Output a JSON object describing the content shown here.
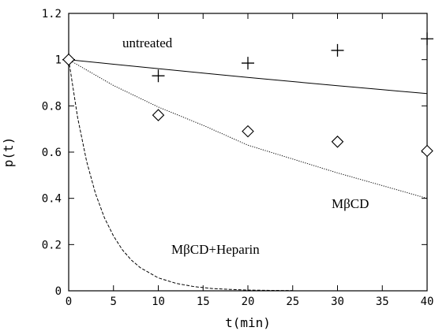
{
  "chart_data": {
    "type": "scatter",
    "xlabel": "t(min)",
    "ylabel": "p(t)",
    "xlim": [
      0,
      40
    ],
    "ylim": [
      0,
      1.2
    ],
    "x_ticks": [
      "0",
      "5",
      "10",
      "15",
      "20",
      "25",
      "30",
      "35",
      "40"
    ],
    "y_ticks": [
      "0",
      "0.2",
      "0.4",
      "0.6",
      "0.8",
      "1",
      "1.2"
    ],
    "grid": false,
    "annotations": [
      "untreated",
      "MβCD",
      "MβCD+Heparin"
    ],
    "series": [
      {
        "name": "untreated",
        "marker": "plus",
        "x": [
          0,
          10,
          20,
          30,
          40
        ],
        "y": [
          1.0,
          0.93,
          0.985,
          1.04,
          1.09
        ]
      },
      {
        "name": "MβCD",
        "marker": "diamond",
        "x": [
          0,
          10,
          20,
          30,
          40
        ],
        "y": [
          1.0,
          0.76,
          0.69,
          0.645,
          0.605
        ]
      }
    ],
    "fits": [
      {
        "name": "untreated",
        "style": "solid",
        "x": [
          0,
          5,
          10,
          15,
          20,
          25,
          30,
          35,
          40
        ],
        "y": [
          1.0,
          0.98,
          0.961,
          0.942,
          0.923,
          0.905,
          0.887,
          0.87,
          0.853
        ]
      },
      {
        "name": "MβCD",
        "style": "dotted",
        "x": [
          0,
          5,
          10,
          15,
          20,
          25,
          30,
          35,
          40
        ],
        "y": [
          1.0,
          0.888,
          0.795,
          0.716,
          0.63,
          0.57,
          0.51,
          0.455,
          0.4
        ]
      },
      {
        "name": "MβCD+Heparin",
        "style": "dashed",
        "x": [
          0,
          1,
          2,
          3,
          4,
          5,
          6,
          7,
          8,
          10,
          12,
          14,
          16,
          18,
          20,
          22,
          25
        ],
        "y": [
          1.0,
          0.75,
          0.56,
          0.42,
          0.315,
          0.237,
          0.177,
          0.133,
          0.1,
          0.056,
          0.032,
          0.018,
          0.01,
          0.006,
          0.003,
          0.002,
          0.001
        ]
      }
    ]
  }
}
